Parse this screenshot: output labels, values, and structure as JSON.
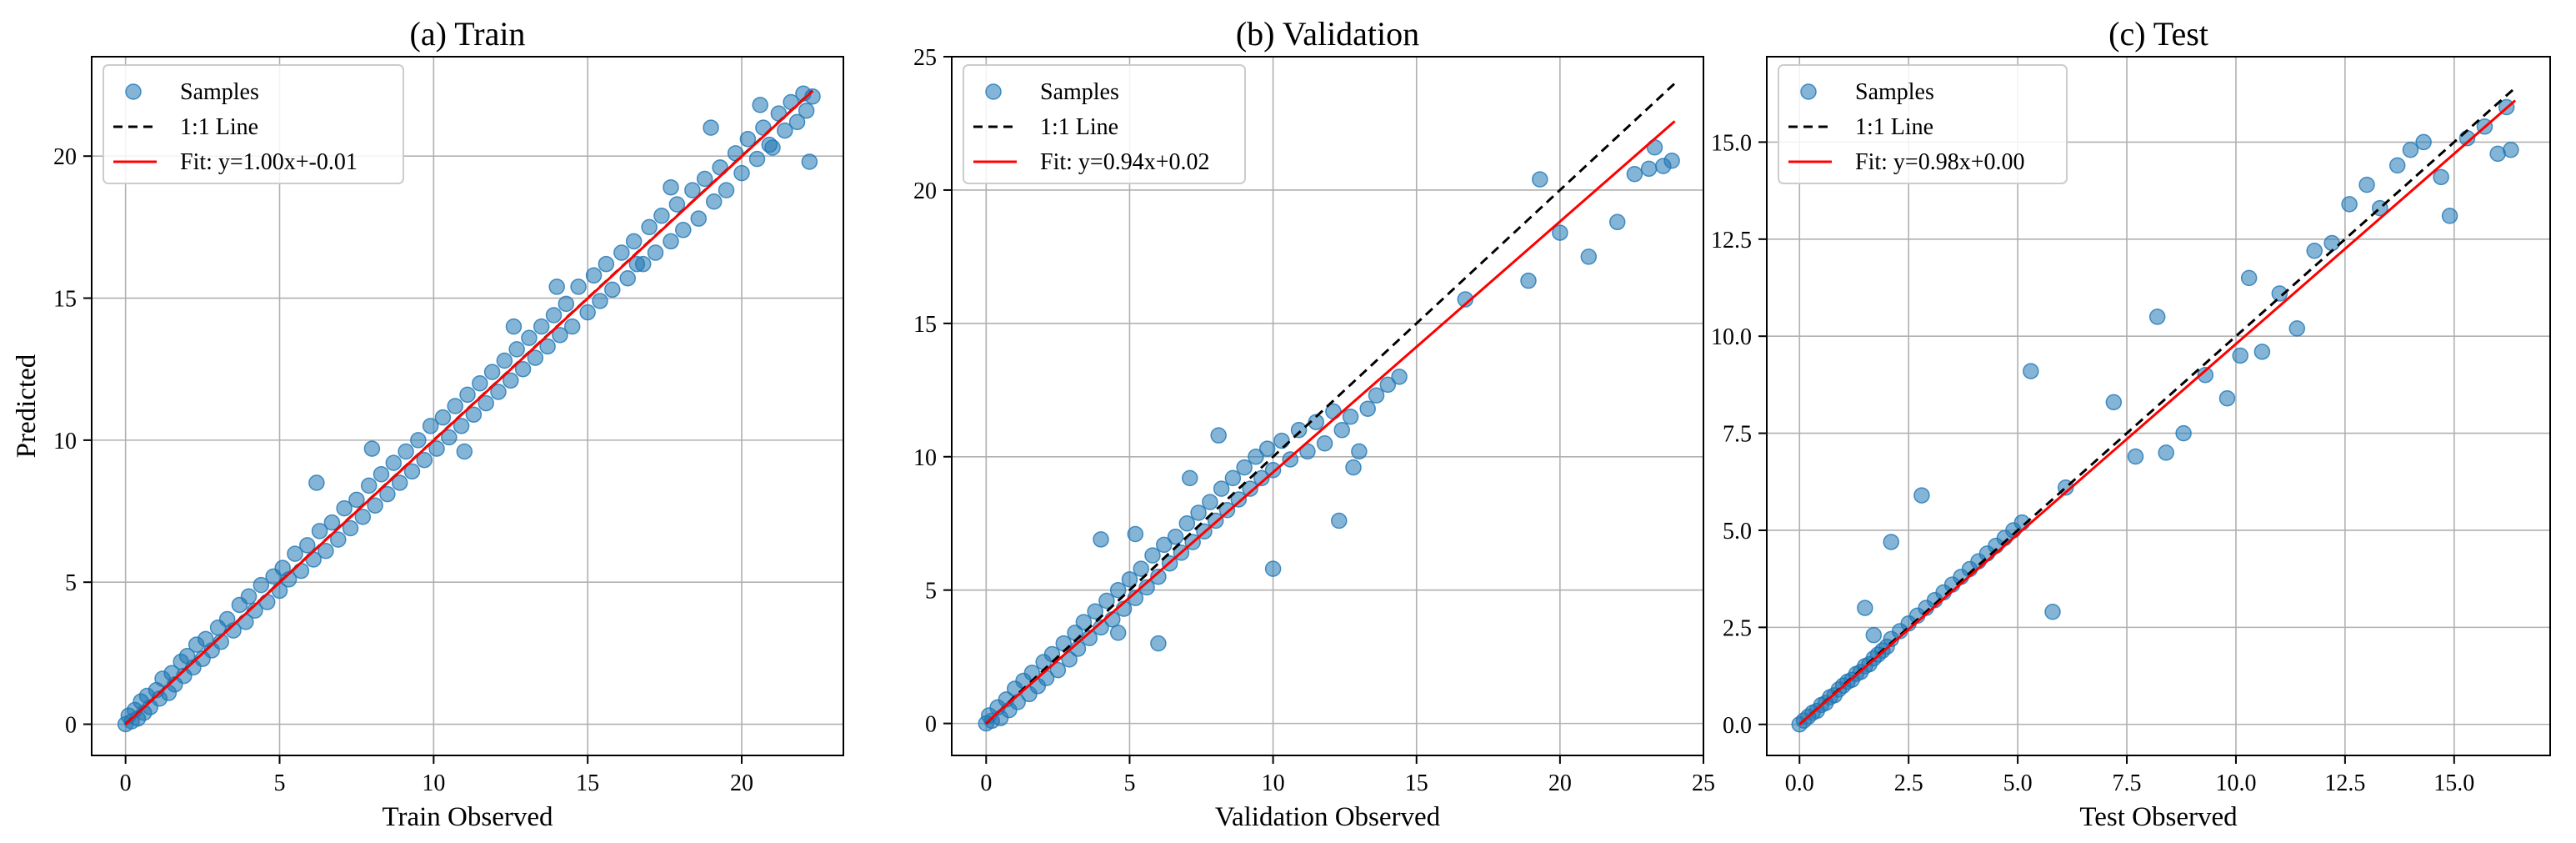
{
  "chart_data": [
    {
      "type": "scatter",
      "title": "(a) Train",
      "xlabel": "Train Observed",
      "ylabel": "Predicted",
      "xlim": [
        -1.1,
        23.3
      ],
      "ylim": [
        -1.1,
        23.5
      ],
      "xticks": [
        0,
        5,
        10,
        15,
        20
      ],
      "yticks": [
        0,
        5,
        10,
        15,
        20
      ],
      "tick_labels_x": [
        "0",
        "5",
        "10",
        "15",
        "20"
      ],
      "tick_labels_y": [
        "0",
        "5",
        "10",
        "15",
        "20"
      ],
      "grid": true,
      "legend_position": "top-left",
      "legend": [
        "Samples",
        "1:1 Line",
        "Fit: y=1.00x+-0.01"
      ],
      "identity_line": [
        0,
        22.3
      ],
      "fit": {
        "slope": 1.0,
        "intercept": -0.01,
        "range": [
          0,
          22.3
        ]
      },
      "samples": [
        [
          0,
          0
        ],
        [
          0.1,
          0.3
        ],
        [
          0.2,
          0.1
        ],
        [
          0.3,
          0.5
        ],
        [
          0.4,
          0.2
        ],
        [
          0.5,
          0.8
        ],
        [
          0.6,
          0.4
        ],
        [
          0.7,
          1.0
        ],
        [
          0.8,
          0.6
        ],
        [
          1.0,
          1.2
        ],
        [
          1.1,
          0.9
        ],
        [
          1.2,
          1.6
        ],
        [
          1.4,
          1.1
        ],
        [
          1.5,
          1.8
        ],
        [
          1.6,
          1.4
        ],
        [
          1.8,
          2.2
        ],
        [
          1.9,
          1.7
        ],
        [
          2.0,
          2.4
        ],
        [
          2.2,
          2.0
        ],
        [
          2.3,
          2.8
        ],
        [
          2.5,
          2.3
        ],
        [
          2.6,
          3.0
        ],
        [
          2.8,
          2.6
        ],
        [
          3.0,
          3.4
        ],
        [
          3.1,
          2.9
        ],
        [
          3.3,
          3.7
        ],
        [
          3.5,
          3.3
        ],
        [
          3.7,
          4.2
        ],
        [
          3.9,
          3.6
        ],
        [
          4.0,
          4.5
        ],
        [
          4.2,
          4.0
        ],
        [
          4.4,
          4.9
        ],
        [
          4.6,
          4.3
        ],
        [
          4.8,
          5.2
        ],
        [
          5.0,
          4.7
        ],
        [
          5.1,
          5.5
        ],
        [
          5.3,
          5.1
        ],
        [
          5.5,
          6.0
        ],
        [
          5.7,
          5.4
        ],
        [
          5.9,
          6.3
        ],
        [
          6.1,
          5.8
        ],
        [
          6.3,
          6.8
        ],
        [
          6.5,
          6.1
        ],
        [
          6.7,
          7.1
        ],
        [
          6.9,
          6.5
        ],
        [
          7.1,
          7.6
        ],
        [
          7.3,
          6.9
        ],
        [
          7.5,
          7.9
        ],
        [
          7.7,
          7.3
        ],
        [
          7.9,
          8.4
        ],
        [
          8.1,
          7.7
        ],
        [
          8.3,
          8.8
        ],
        [
          8.5,
          8.1
        ],
        [
          8.7,
          9.2
        ],
        [
          8.9,
          8.5
        ],
        [
          9.1,
          9.6
        ],
        [
          9.3,
          8.9
        ],
        [
          9.5,
          10.0
        ],
        [
          9.7,
          9.3
        ],
        [
          9.9,
          10.5
        ],
        [
          10.1,
          9.7
        ],
        [
          10.3,
          10.8
        ],
        [
          10.5,
          10.1
        ],
        [
          10.7,
          11.2
        ],
        [
          10.9,
          10.5
        ],
        [
          11.1,
          11.6
        ],
        [
          11.3,
          10.9
        ],
        [
          11.5,
          12.0
        ],
        [
          11.7,
          11.3
        ],
        [
          11.9,
          12.4
        ],
        [
          12.1,
          11.7
        ],
        [
          12.3,
          12.8
        ],
        [
          12.5,
          12.1
        ],
        [
          12.7,
          13.2
        ],
        [
          12.9,
          12.5
        ],
        [
          13.1,
          13.6
        ],
        [
          13.3,
          12.9
        ],
        [
          13.5,
          14.0
        ],
        [
          13.7,
          13.3
        ],
        [
          13.9,
          14.4
        ],
        [
          14.1,
          13.7
        ],
        [
          14.3,
          14.8
        ],
        [
          14.5,
          14.0
        ],
        [
          14.7,
          15.4
        ],
        [
          15.0,
          14.5
        ],
        [
          15.2,
          15.8
        ],
        [
          15.4,
          14.9
        ],
        [
          15.6,
          16.2
        ],
        [
          15.8,
          15.3
        ],
        [
          16.1,
          16.6
        ],
        [
          16.3,
          15.7
        ],
        [
          16.5,
          17.0
        ],
        [
          16.8,
          16.2
        ],
        [
          17.0,
          17.5
        ],
        [
          17.2,
          16.6
        ],
        [
          17.4,
          17.9
        ],
        [
          17.7,
          17.0
        ],
        [
          17.9,
          18.3
        ],
        [
          18.1,
          17.4
        ],
        [
          18.4,
          18.8
        ],
        [
          18.6,
          17.8
        ],
        [
          18.8,
          19.2
        ],
        [
          19.1,
          18.4
        ],
        [
          19.3,
          19.6
        ],
        [
          19.5,
          18.8
        ],
        [
          19.8,
          20.1
        ],
        [
          20.0,
          19.4
        ],
        [
          20.2,
          20.6
        ],
        [
          20.5,
          19.9
        ],
        [
          20.7,
          21.0
        ],
        [
          20.9,
          20.4
        ],
        [
          21.2,
          21.5
        ],
        [
          21.4,
          20.9
        ],
        [
          21.6,
          21.9
        ],
        [
          21.8,
          21.2
        ],
        [
          22.0,
          22.2
        ],
        [
          22.1,
          21.6
        ],
        [
          22.2,
          19.8
        ],
        [
          22.3,
          22.1
        ],
        [
          11.0,
          9.6
        ],
        [
          12.6,
          14.0
        ],
        [
          6.2,
          8.5
        ],
        [
          8.0,
          9.7
        ],
        [
          16.6,
          16.2
        ],
        [
          14.0,
          15.4
        ],
        [
          19.0,
          21.0
        ],
        [
          17.7,
          18.9
        ],
        [
          21.0,
          20.3
        ],
        [
          20.6,
          21.8
        ]
      ]
    },
    {
      "type": "scatter",
      "title": "(b) Validation",
      "xlabel": "Validation Observed",
      "ylabel": "",
      "xlim": [
        -1.2,
        25.0
      ],
      "ylim": [
        -1.2,
        25.0
      ],
      "xticks": [
        0,
        5,
        10,
        15,
        20,
        25
      ],
      "yticks": [
        0,
        5,
        10,
        15,
        20,
        25
      ],
      "tick_labels_x": [
        "0",
        "5",
        "10",
        "15",
        "20",
        "25"
      ],
      "tick_labels_y": [
        "0",
        "5",
        "10",
        "15",
        "20",
        "25"
      ],
      "grid": true,
      "legend_position": "top-left",
      "legend": [
        "Samples",
        "1:1 Line",
        "Fit: y=0.94x+0.02"
      ],
      "identity_line": [
        0,
        24
      ],
      "fit": {
        "slope": 0.94,
        "intercept": 0.02,
        "range": [
          0,
          24
        ]
      },
      "samples": [
        [
          0,
          0
        ],
        [
          0.1,
          0.3
        ],
        [
          0.2,
          0.1
        ],
        [
          0.4,
          0.6
        ],
        [
          0.5,
          0.2
        ],
        [
          0.7,
          0.9
        ],
        [
          0.8,
          0.5
        ],
        [
          1.0,
          1.3
        ],
        [
          1.1,
          0.8
        ],
        [
          1.3,
          1.6
        ],
        [
          1.5,
          1.1
        ],
        [
          1.6,
          1.9
        ],
        [
          1.8,
          1.4
        ],
        [
          2.0,
          2.3
        ],
        [
          2.1,
          1.7
        ],
        [
          2.3,
          2.6
        ],
        [
          2.5,
          2.0
        ],
        [
          2.7,
          3.0
        ],
        [
          2.9,
          2.4
        ],
        [
          3.1,
          3.4
        ],
        [
          3.2,
          2.8
        ],
        [
          3.4,
          3.8
        ],
        [
          3.6,
          3.2
        ],
        [
          3.8,
          4.2
        ],
        [
          4.0,
          3.6
        ],
        [
          4.2,
          4.6
        ],
        [
          4.4,
          3.9
        ],
        [
          4.6,
          5.0
        ],
        [
          4.8,
          4.3
        ],
        [
          5.0,
          5.4
        ],
        [
          5.2,
          4.7
        ],
        [
          5.4,
          5.8
        ],
        [
          5.6,
          5.1
        ],
        [
          5.8,
          6.3
        ],
        [
          6.0,
          5.5
        ],
        [
          6.2,
          6.7
        ],
        [
          6.4,
          6.0
        ],
        [
          6.6,
          7.0
        ],
        [
          6.8,
          6.4
        ],
        [
          7.0,
          7.5
        ],
        [
          7.2,
          6.8
        ],
        [
          7.4,
          7.9
        ],
        [
          7.6,
          7.2
        ],
        [
          7.8,
          8.3
        ],
        [
          8.0,
          7.6
        ],
        [
          8.2,
          8.8
        ],
        [
          8.4,
          8.0
        ],
        [
          8.6,
          9.2
        ],
        [
          8.8,
          8.4
        ],
        [
          9.0,
          9.6
        ],
        [
          9.2,
          8.8
        ],
        [
          9.4,
          10.0
        ],
        [
          9.6,
          9.2
        ],
        [
          9.8,
          10.3
        ],
        [
          10.0,
          9.5
        ],
        [
          10.3,
          10.6
        ],
        [
          10.6,
          9.9
        ],
        [
          10.9,
          11.0
        ],
        [
          11.2,
          10.2
        ],
        [
          11.5,
          11.3
        ],
        [
          11.8,
          10.5
        ],
        [
          12.1,
          11.7
        ],
        [
          12.4,
          11.0
        ],
        [
          12.7,
          11.5
        ],
        [
          13.0,
          10.2
        ],
        [
          13.3,
          11.8
        ],
        [
          13.6,
          12.3
        ],
        [
          14.0,
          12.7
        ],
        [
          14.4,
          13.0
        ],
        [
          12.3,
          7.6
        ],
        [
          10.0,
          5.8
        ],
        [
          4.0,
          6.9
        ],
        [
          5.2,
          7.1
        ],
        [
          7.1,
          9.2
        ],
        [
          4.6,
          3.4
        ],
        [
          6.0,
          3.0
        ],
        [
          16.7,
          15.9
        ],
        [
          18.9,
          16.6
        ],
        [
          20.0,
          18.4
        ],
        [
          21.0,
          17.5
        ],
        [
          22.0,
          18.8
        ],
        [
          22.6,
          20.6
        ],
        [
          23.3,
          21.6
        ],
        [
          23.6,
          20.9
        ],
        [
          23.9,
          21.1
        ],
        [
          23.1,
          20.8
        ],
        [
          19.3,
          20.4
        ],
        [
          12.8,
          9.6
        ],
        [
          8.1,
          10.8
        ]
      ]
    },
    {
      "type": "scatter",
      "title": "(c) Test",
      "xlabel": "Test Observed",
      "ylabel": "",
      "xlim": [
        -0.75,
        17.2
      ],
      "ylim": [
        -0.8,
        17.2
      ],
      "xticks": [
        0,
        2.5,
        5,
        7.5,
        10,
        12.5,
        15
      ],
      "yticks": [
        0,
        2.5,
        5,
        7.5,
        10,
        12.5,
        15
      ],
      "tick_labels_x": [
        "0.0",
        "2.5",
        "5.0",
        "7.5",
        "10.0",
        "12.5",
        "15.0"
      ],
      "tick_labels_y": [
        "0.0",
        "2.5",
        "5.0",
        "7.5",
        "10.0",
        "12.5",
        "15.0"
      ],
      "grid": true,
      "legend_position": "top-left",
      "legend": [
        "Samples",
        "1:1 Line",
        "Fit: y=0.98x+0.00"
      ],
      "identity_line": [
        0,
        16.4
      ],
      "fit": {
        "slope": 0.98,
        "intercept": 0.0,
        "range": [
          0,
          16.4
        ]
      },
      "samples": [
        [
          0,
          0
        ],
        [
          0.1,
          0.1
        ],
        [
          0.2,
          0.2
        ],
        [
          0.3,
          0.3
        ],
        [
          0.4,
          0.35
        ],
        [
          0.5,
          0.5
        ],
        [
          0.6,
          0.55
        ],
        [
          0.7,
          0.7
        ],
        [
          0.8,
          0.75
        ],
        [
          0.9,
          0.9
        ],
        [
          1.0,
          1.0
        ],
        [
          1.1,
          1.1
        ],
        [
          1.2,
          1.15
        ],
        [
          1.3,
          1.3
        ],
        [
          1.4,
          1.35
        ],
        [
          1.5,
          1.5
        ],
        [
          1.6,
          1.55
        ],
        [
          1.7,
          1.7
        ],
        [
          1.8,
          1.8
        ],
        [
          1.9,
          1.9
        ],
        [
          2.0,
          2.0
        ],
        [
          1.5,
          3.0
        ],
        [
          1.7,
          2.3
        ],
        [
          2.1,
          2.2
        ],
        [
          2.3,
          2.4
        ],
        [
          2.5,
          2.6
        ],
        [
          2.7,
          2.8
        ],
        [
          2.9,
          3.0
        ],
        [
          3.1,
          3.2
        ],
        [
          3.3,
          3.4
        ],
        [
          3.5,
          3.6
        ],
        [
          3.7,
          3.8
        ],
        [
          3.9,
          4.0
        ],
        [
          4.1,
          4.2
        ],
        [
          4.3,
          4.4
        ],
        [
          4.5,
          4.6
        ],
        [
          4.7,
          4.8
        ],
        [
          4.9,
          5.0
        ],
        [
          5.1,
          5.2
        ],
        [
          2.1,
          4.7
        ],
        [
          2.8,
          5.9
        ],
        [
          5.3,
          9.1
        ],
        [
          5.8,
          2.9
        ],
        [
          6.1,
          6.1
        ],
        [
          7.2,
          8.3
        ],
        [
          7.7,
          6.9
        ],
        [
          8.2,
          10.5
        ],
        [
          8.4,
          7.0
        ],
        [
          8.8,
          7.5
        ],
        [
          9.3,
          9.0
        ],
        [
          9.8,
          8.4
        ],
        [
          10.1,
          9.5
        ],
        [
          10.3,
          11.5
        ],
        [
          10.6,
          9.6
        ],
        [
          11.0,
          11.1
        ],
        [
          11.4,
          10.2
        ],
        [
          11.8,
          12.2
        ],
        [
          12.2,
          12.4
        ],
        [
          12.6,
          13.4
        ],
        [
          13.0,
          13.9
        ],
        [
          13.3,
          13.3
        ],
        [
          13.7,
          14.4
        ],
        [
          14.0,
          14.8
        ],
        [
          14.3,
          15.0
        ],
        [
          14.7,
          14.1
        ],
        [
          14.9,
          13.1
        ],
        [
          15.3,
          15.1
        ],
        [
          15.7,
          15.4
        ],
        [
          16.0,
          14.7
        ],
        [
          16.3,
          14.8
        ],
        [
          16.2,
          15.9
        ]
      ]
    }
  ],
  "colors": {
    "samples": "#1f77b4",
    "identity_line": "#000000",
    "fit_line": "#ff0000",
    "grid": "#b0b0b0"
  }
}
